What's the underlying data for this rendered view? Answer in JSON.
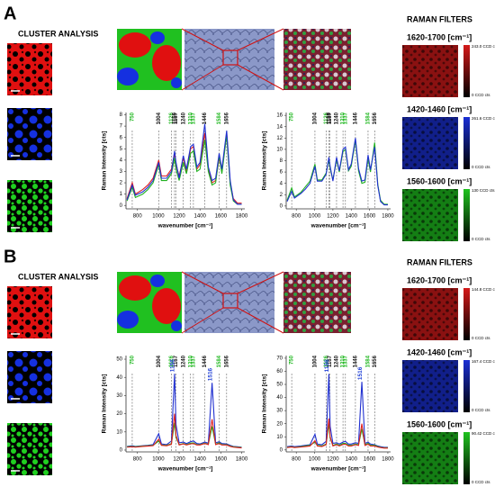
{
  "panels": [
    {
      "label": "A",
      "cluster_title": "CLUSTER ANALYSIS",
      "filters_title": "RAMAN FILTERS",
      "filters": [
        {
          "range": "1620-1700 [cm⁻¹]",
          "max_label": "243.0 CCD cts",
          "min_label": "0 CCD cts",
          "color": "#d41a1a"
        },
        {
          "range": "1420-1460 [cm⁻¹]",
          "max_label": "261.6 CCD cts",
          "min_label": "0 CCD cts",
          "color": "#1a2fd4"
        },
        {
          "range": "1560-1600 [cm⁻¹]",
          "max_label": "130 CCD cts",
          "min_label": "0 CCD cts",
          "color": "#1fc21f"
        }
      ]
    },
    {
      "label": "B",
      "cluster_title": "CLUSTER ANALYSIS",
      "filters_title": "RAMAN FILTERS",
      "filters": [
        {
          "range": "1620-1700 [cm⁻¹]",
          "max_label": "144.8 CCD cts",
          "min_label": "0 CCD cts",
          "color": "#d41a1a"
        },
        {
          "range": "1420-1460 [cm⁻¹]",
          "max_label": "167.4 CCD cts",
          "min_label": "0 CCD cts",
          "color": "#1a2fd4"
        },
        {
          "range": "1560-1600 [cm⁻¹]",
          "max_label": "90.42 CCD cts",
          "min_label": "0 CCD cts",
          "color": "#1fc21f"
        }
      ]
    }
  ],
  "chart_data": [
    {
      "type": "line",
      "x_label": "wavenumber [cm⁻¹]",
      "y_label": "Raman Intensity [cts]",
      "x": [
        700,
        750,
        780,
        850,
        900,
        950,
        1004,
        1030,
        1080,
        1126,
        1156,
        1170,
        1200,
        1240,
        1270,
        1310,
        1337,
        1370,
        1400,
        1446,
        1480,
        1516,
        1550,
        1584,
        1610,
        1656,
        1690,
        1720,
        1760,
        1800
      ],
      "xlim": [
        690,
        1830
      ],
      "xticks": [
        800,
        1000,
        1200,
        1400,
        1600,
        1800
      ],
      "ylim": [
        -0.3,
        8.2
      ],
      "yticks": [
        0,
        1,
        2,
        3,
        4,
        5,
        6,
        7,
        8
      ],
      "series": [
        {
          "name": "red",
          "color": "#e02020",
          "values": [
            0.6,
            2.0,
            1.0,
            1.4,
            1.8,
            2.4,
            4.0,
            2.6,
            2.6,
            3.2,
            4.6,
            3.6,
            2.6,
            4.2,
            3.0,
            5.0,
            5.2,
            3.2,
            3.6,
            6.4,
            3.2,
            2.0,
            2.2,
            4.2,
            3.0,
            6.4,
            2.0,
            0.6,
            0.2,
            0.2
          ]
        },
        {
          "name": "green",
          "color": "#20b020",
          "values": [
            0.4,
            1.6,
            0.7,
            1.0,
            1.4,
            2.0,
            3.6,
            2.2,
            2.2,
            2.8,
            4.2,
            3.2,
            2.2,
            3.8,
            2.8,
            4.6,
            4.8,
            3.0,
            3.2,
            5.8,
            3.0,
            1.8,
            2.0,
            4.4,
            2.8,
            6.2,
            1.8,
            0.4,
            0.1,
            0.1
          ]
        },
        {
          "name": "blue",
          "color": "#2030d0",
          "values": [
            0.5,
            1.8,
            0.9,
            1.2,
            1.6,
            2.2,
            3.8,
            2.4,
            2.4,
            3.0,
            4.8,
            3.8,
            2.4,
            4.4,
            3.2,
            5.2,
            5.4,
            3.4,
            3.8,
            7.2,
            3.4,
            2.2,
            2.4,
            4.6,
            3.2,
            6.6,
            2.2,
            0.5,
            0.1,
            0.1
          ]
        }
      ],
      "peaks": [
        {
          "value": 750,
          "color": "#22b822"
        },
        {
          "value": 1004,
          "color": "#111111"
        },
        {
          "value": 1126,
          "color": "#22b822"
        },
        {
          "value": 1156,
          "color": "#111111"
        },
        {
          "value": 1167,
          "color": "#111111"
        },
        {
          "value": 1240,
          "color": "#111111"
        },
        {
          "value": 1310,
          "color": "#22b822"
        },
        {
          "value": 1337,
          "color": "#22b822"
        },
        {
          "value": 1446,
          "color": "#111111"
        },
        {
          "value": 1584,
          "color": "#22b822"
        },
        {
          "value": 1656,
          "color": "#111111"
        }
      ]
    },
    {
      "type": "line",
      "x_label": "wavenumber [cm⁻¹]",
      "y_label": "Raman Intensity [cts]",
      "x": [
        700,
        750,
        780,
        850,
        900,
        950,
        1004,
        1030,
        1080,
        1126,
        1156,
        1170,
        1200,
        1240,
        1270,
        1310,
        1337,
        1370,
        1400,
        1446,
        1480,
        1516,
        1550,
        1584,
        1610,
        1656,
        1690,
        1720,
        1760,
        1800
      ],
      "xlim": [
        690,
        1830
      ],
      "xticks": [
        800,
        1000,
        1200,
        1400,
        1600,
        1800
      ],
      "ylim": [
        -0.5,
        16.5
      ],
      "yticks": [
        0,
        2,
        4,
        6,
        8,
        10,
        12,
        14,
        16
      ],
      "series": [
        {
          "name": "green",
          "color": "#20b020",
          "values": [
            1.0,
            3.2,
            1.6,
            2.4,
            3.4,
            4.4,
            7.4,
            4.6,
            4.6,
            5.8,
            8.2,
            6.6,
            4.6,
            8.2,
            6.0,
            9.6,
            10.0,
            6.2,
            7.0,
            11.6,
            6.2,
            4.0,
            4.2,
            8.4,
            6.0,
            11.2,
            3.8,
            1.0,
            0.3,
            0.3
          ]
        },
        {
          "name": "blue",
          "color": "#2030d0",
          "values": [
            0.8,
            2.6,
            1.4,
            2.2,
            3.0,
            4.0,
            7.0,
            4.4,
            4.4,
            5.6,
            8.6,
            7.0,
            4.4,
            8.6,
            6.2,
            10.0,
            10.4,
            6.4,
            7.4,
            12.0,
            6.6,
            4.4,
            4.6,
            9.0,
            6.4,
            10.4,
            3.6,
            0.8,
            0.2,
            0.2
          ]
        }
      ],
      "peaks": [
        {
          "value": 750,
          "color": "#22b822"
        },
        {
          "value": 1004,
          "color": "#111111"
        },
        {
          "value": 1126,
          "color": "#22b822"
        },
        {
          "value": 1156,
          "color": "#111111"
        },
        {
          "value": 1167,
          "color": "#111111"
        },
        {
          "value": 1240,
          "color": "#111111"
        },
        {
          "value": 1310,
          "color": "#22b822"
        },
        {
          "value": 1337,
          "color": "#22b822"
        },
        {
          "value": 1446,
          "color": "#111111"
        },
        {
          "value": 1584,
          "color": "#22b822"
        },
        {
          "value": 1656,
          "color": "#111111"
        }
      ]
    },
    {
      "type": "line",
      "x_label": "wavenumber [cm⁻¹]",
      "y_label": "Raman Intensity [cts]",
      "x": [
        700,
        750,
        780,
        850,
        900,
        950,
        1004,
        1030,
        1080,
        1126,
        1156,
        1170,
        1200,
        1240,
        1270,
        1310,
        1337,
        1370,
        1400,
        1446,
        1480,
        1516,
        1550,
        1584,
        1610,
        1656,
        1690,
        1720,
        1760,
        1800
      ],
      "xlim": [
        690,
        1830
      ],
      "xticks": [
        800,
        1000,
        1200,
        1400,
        1600,
        1800
      ],
      "ylim": [
        -1,
        52
      ],
      "yticks": [
        0,
        10,
        20,
        30,
        40,
        50
      ],
      "series": [
        {
          "name": "blue",
          "color": "#2030d0",
          "values": [
            2.0,
            2.4,
            2.0,
            2.4,
            2.6,
            3.0,
            9.0,
            3.4,
            3.0,
            5.0,
            42.0,
            14.0,
            4.0,
            4.4,
            3.6,
            4.6,
            5.0,
            3.6,
            3.4,
            4.4,
            3.8,
            37.0,
            4.0,
            4.6,
            3.6,
            3.4,
            2.6,
            2.0,
            1.8,
            1.6
          ]
        },
        {
          "name": "green",
          "color": "#20b020",
          "values": [
            1.8,
            2.0,
            1.8,
            2.2,
            2.4,
            2.6,
            5.0,
            2.8,
            2.6,
            3.6,
            15.0,
            7.0,
            3.0,
            3.6,
            3.0,
            3.8,
            4.0,
            3.0,
            3.0,
            3.8,
            3.2,
            13.0,
            3.2,
            4.0,
            3.0,
            3.0,
            2.2,
            1.8,
            1.6,
            1.4
          ]
        },
        {
          "name": "red",
          "color": "#e02020",
          "values": [
            1.6,
            1.8,
            1.6,
            2.0,
            2.2,
            2.4,
            6.0,
            2.6,
            2.4,
            3.2,
            20.0,
            8.0,
            2.8,
            3.4,
            2.8,
            3.4,
            3.6,
            2.8,
            2.8,
            3.6,
            3.0,
            17.0,
            3.0,
            3.6,
            2.8,
            2.8,
            2.0,
            1.6,
            1.4,
            1.2
          ]
        }
      ],
      "peaks": [
        {
          "value": 750,
          "color": "#22b822"
        },
        {
          "value": 1004,
          "color": "#111111"
        },
        {
          "value": 1126,
          "color": "#22b822"
        },
        {
          "value": 1167,
          "color": "#111111"
        },
        {
          "value": 1240,
          "color": "#111111"
        },
        {
          "value": 1310,
          "color": "#22b822"
        },
        {
          "value": 1337,
          "color": "#22b822"
        },
        {
          "value": 1446,
          "color": "#111111"
        },
        {
          "value": 1584,
          "color": "#22b822"
        },
        {
          "value": 1656,
          "color": "#111111"
        }
      ],
      "peak_annotations": [
        {
          "value": 1156,
          "color": "#1f3fd6"
        },
        {
          "value": 1516,
          "color": "#1f3fd6"
        }
      ]
    },
    {
      "type": "line",
      "x_label": "wavenumber [cm⁻¹]",
      "y_label": "Raman Intensity [cts]",
      "x": [
        700,
        750,
        780,
        850,
        900,
        950,
        1004,
        1030,
        1080,
        1126,
        1156,
        1170,
        1200,
        1240,
        1270,
        1310,
        1337,
        1370,
        1400,
        1446,
        1480,
        1516,
        1550,
        1584,
        1610,
        1656,
        1690,
        1720,
        1760,
        1800
      ],
      "xlim": [
        690,
        1830
      ],
      "xticks": [
        800,
        1000,
        1200,
        1400,
        1600,
        1800
      ],
      "ylim": [
        -1.5,
        72
      ],
      "yticks": [
        0,
        10,
        20,
        30,
        40,
        50,
        60,
        70
      ],
      "series": [
        {
          "name": "blue",
          "color": "#2030d0",
          "values": [
            2.5,
            3.0,
            2.5,
            3.0,
            3.5,
            4.0,
            12.0,
            4.5,
            4.0,
            6.5,
            58.0,
            18.0,
            5.0,
            5.5,
            4.5,
            6.0,
            6.5,
            4.5,
            4.5,
            5.5,
            5.0,
            52.0,
            5.0,
            6.0,
            4.5,
            4.0,
            3.0,
            2.5,
            2.0,
            2.0
          ]
        },
        {
          "name": "green",
          "color": "#20b020",
          "values": [
            2.0,
            2.5,
            2.0,
            2.5,
            3.0,
            3.5,
            6.0,
            3.5,
            3.0,
            4.5,
            20.0,
            9.0,
            3.5,
            4.5,
            3.5,
            5.0,
            5.0,
            3.5,
            3.5,
            4.5,
            4.0,
            16.0,
            4.0,
            5.0,
            3.5,
            3.5,
            2.5,
            2.0,
            1.6,
            1.6
          ]
        },
        {
          "name": "red",
          "color": "#e02020",
          "values": [
            1.8,
            2.2,
            1.8,
            2.2,
            2.6,
            3.0,
            7.0,
            3.0,
            2.6,
            4.0,
            24.0,
            10.0,
            3.0,
            4.0,
            3.0,
            4.2,
            4.4,
            3.0,
            3.0,
            4.0,
            3.4,
            20.0,
            3.4,
            4.4,
            3.0,
            3.0,
            2.2,
            1.8,
            1.4,
            1.4
          ]
        }
      ],
      "peaks": [
        {
          "value": 750,
          "color": "#22b822"
        },
        {
          "value": 1004,
          "color": "#111111"
        },
        {
          "value": 1126,
          "color": "#22b822"
        },
        {
          "value": 1167,
          "color": "#111111"
        },
        {
          "value": 1240,
          "color": "#111111"
        },
        {
          "value": 1310,
          "color": "#22b822"
        },
        {
          "value": 1337,
          "color": "#22b822"
        },
        {
          "value": 1446,
          "color": "#111111"
        },
        {
          "value": 1584,
          "color": "#22b822"
        },
        {
          "value": 1656,
          "color": "#111111"
        }
      ],
      "peak_annotations": [
        {
          "value": 1156,
          "color": "#1f3fd6"
        },
        {
          "value": 1516,
          "color": "#1f3fd6"
        }
      ]
    }
  ]
}
